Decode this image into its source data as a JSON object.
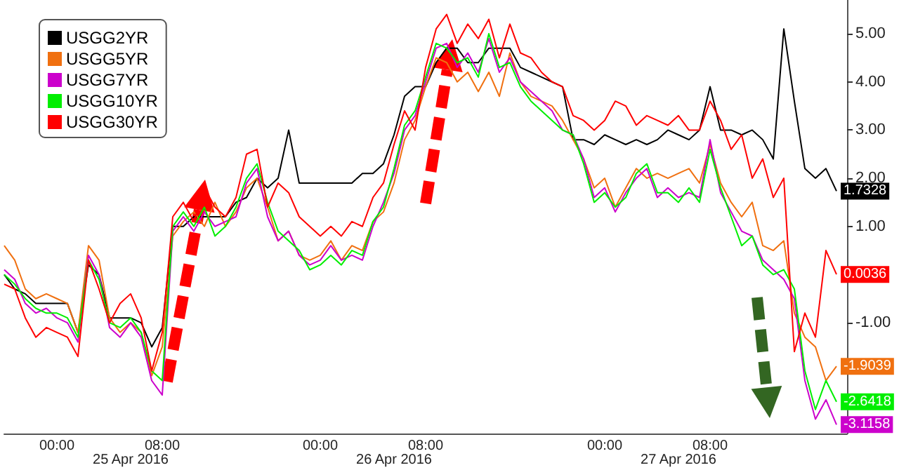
{
  "chart_data": {
    "type": "line",
    "legend": "top left",
    "categories": [
      null,
      null,
      null,
      null,
      null,
      "00:00",
      null,
      null,
      null,
      null,
      null,
      null,
      "25 Apr 2016",
      null,
      null,
      "08:00",
      null,
      null,
      null,
      null,
      null,
      null,
      null,
      null,
      null,
      null,
      null,
      null,
      null,
      null,
      "00:00",
      null,
      null,
      null,
      null,
      null,
      null,
      "26 Apr 2016",
      null,
      null,
      "08:00",
      null,
      null,
      null,
      null,
      null,
      null,
      null,
      null,
      null,
      null,
      null,
      null,
      null,
      null,
      null,
      null,
      "00:00",
      null,
      null,
      null,
      null,
      null,
      null,
      "27 Apr 2016",
      null,
      null,
      "08:00",
      null,
      null,
      null,
      null,
      null,
      null,
      null,
      null,
      null,
      null,
      null,
      null,
      null
    ],
    "ylim": [
      -3.3,
      5.7
    ],
    "yticks": [
      {
        "value": -3,
        "label": null
      },
      {
        "value": -2,
        "label": null
      },
      {
        "value": -1,
        "label": "-1.00"
      },
      {
        "value": 0,
        "label": null
      },
      {
        "value": 1,
        "label": "1.00"
      },
      {
        "value": 2,
        "label": "2.00"
      },
      {
        "value": 3,
        "label": "3.00"
      },
      {
        "value": 4,
        "label": "4.00"
      },
      {
        "value": 5,
        "label": "5.00"
      }
    ],
    "series": [
      {
        "name": "USGG2YR",
        "color": "#000000",
        "values": [
          0.0,
          -0.3,
          -0.4,
          -0.6,
          -0.6,
          -0.6,
          -0.6,
          -1.2,
          0.2,
          0.0,
          -0.9,
          -0.9,
          -0.9,
          -1.0,
          -1.5,
          -1.1,
          1.0,
          1.0,
          1.2,
          1.2,
          1.2,
          1.2,
          1.5,
          1.6,
          2.0,
          1.8,
          2.0,
          3.0,
          1.9,
          1.9,
          1.9,
          1.9,
          1.9,
          1.9,
          2.1,
          2.1,
          2.3,
          2.9,
          3.7,
          3.9,
          3.9,
          4.4,
          4.7,
          4.7,
          4.4,
          4.4,
          4.7,
          4.7,
          4.7,
          4.3,
          4.2,
          4.1,
          4.0,
          3.9,
          2.8,
          2.8,
          2.7,
          2.9,
          2.8,
          2.7,
          2.8,
          2.7,
          2.8,
          3.0,
          2.9,
          2.8,
          3.0,
          3.9,
          3.0,
          3.0,
          2.9,
          3.0,
          2.8,
          2.4,
          5.1,
          3.6,
          2.2,
          2.0,
          2.2,
          1.7328,
          null
        ],
        "value_labels": [
          null,
          null,
          null,
          null,
          null,
          null,
          null,
          null,
          null,
          null,
          null,
          null,
          null,
          null,
          null,
          null,
          null,
          null,
          null,
          null,
          null,
          null,
          null,
          null,
          null,
          null,
          null,
          null,
          null,
          null,
          null,
          null,
          null,
          null,
          null,
          null,
          null,
          null,
          null,
          null,
          null,
          null,
          null,
          null,
          null,
          null,
          null,
          null,
          null,
          null,
          null,
          null,
          null,
          null,
          null,
          null,
          null,
          null,
          null,
          null,
          null,
          null,
          null,
          null,
          null,
          null,
          null,
          null,
          null,
          null,
          null,
          null,
          null,
          null,
          null,
          null,
          null,
          null,
          null,
          "1.7328",
          null
        ]
      },
      {
        "name": "USGG5YR",
        "color": "#f07010",
        "values": [
          0.6,
          0.3,
          -0.3,
          -0.5,
          -0.4,
          -0.5,
          -0.6,
          -1.2,
          0.6,
          0.3,
          -0.9,
          -1.2,
          -1.0,
          -1.2,
          -2.1,
          -1.5,
          0.8,
          1.1,
          1.3,
          1.0,
          1.5,
          1.0,
          1.3,
          1.8,
          2.0,
          1.4,
          0.7,
          0.9,
          0.4,
          0.3,
          0.4,
          0.7,
          0.3,
          0.6,
          0.5,
          1.1,
          1.3,
          1.9,
          2.8,
          3.2,
          3.9,
          4.5,
          4.4,
          4.0,
          4.2,
          3.8,
          4.2,
          3.7,
          4.6,
          4.0,
          3.7,
          3.6,
          3.5,
          3.2,
          2.8,
          2.4,
          1.8,
          2.0,
          1.4,
          1.8,
          2.2,
          2.0,
          2.1,
          2.0,
          2.1,
          2.2,
          1.9,
          2.7,
          1.9,
          1.5,
          1.2,
          1.5,
          0.6,
          0.5,
          0.7,
          -0.8,
          -1.3,
          -1.5,
          -2.2,
          -1.9039,
          null
        ],
        "value_labels": [
          null,
          null,
          null,
          null,
          null,
          null,
          null,
          null,
          null,
          null,
          null,
          null,
          null,
          null,
          null,
          null,
          null,
          null,
          null,
          null,
          null,
          null,
          null,
          null,
          null,
          null,
          null,
          null,
          null,
          null,
          null,
          null,
          null,
          null,
          null,
          null,
          null,
          null,
          null,
          null,
          null,
          null,
          null,
          null,
          null,
          null,
          null,
          null,
          null,
          null,
          null,
          null,
          null,
          null,
          null,
          null,
          null,
          null,
          null,
          null,
          null,
          null,
          null,
          null,
          null,
          null,
          null,
          null,
          null,
          null,
          null,
          null,
          null,
          null,
          null,
          null,
          null,
          null,
          null,
          "-1.9039",
          null
        ]
      },
      {
        "name": "USGG7YR",
        "color": "#cc00cc",
        "values": [
          0.1,
          -0.1,
          -0.6,
          -0.8,
          -0.7,
          -0.9,
          -1.0,
          -1.4,
          0.4,
          0.0,
          -1.1,
          -1.3,
          -1.0,
          -1.3,
          -2.2,
          -2.5,
          0.9,
          1.2,
          0.9,
          1.3,
          1.0,
          1.1,
          1.2,
          1.9,
          2.2,
          1.2,
          0.7,
          0.9,
          0.4,
          0.2,
          0.3,
          0.6,
          0.3,
          0.4,
          0.3,
          1.0,
          1.5,
          2.1,
          3.0,
          3.3,
          4.0,
          4.7,
          4.8,
          4.3,
          4.6,
          4.2,
          4.9,
          4.2,
          4.5,
          4.0,
          3.8,
          3.6,
          3.4,
          3.0,
          2.9,
          2.4,
          1.6,
          1.8,
          1.3,
          1.7,
          2.0,
          2.2,
          1.6,
          1.8,
          1.6,
          1.7,
          1.6,
          2.8,
          1.7,
          1.3,
          0.9,
          0.8,
          0.3,
          0.1,
          -0.1,
          -0.5,
          -2.2,
          -3.0,
          -2.6,
          -3.1158,
          null
        ],
        "value_labels": [
          null,
          null,
          null,
          null,
          null,
          null,
          null,
          null,
          null,
          null,
          null,
          null,
          null,
          null,
          null,
          null,
          null,
          null,
          null,
          null,
          null,
          null,
          null,
          null,
          null,
          null,
          null,
          null,
          null,
          null,
          null,
          null,
          null,
          null,
          null,
          null,
          null,
          null,
          null,
          null,
          null,
          null,
          null,
          null,
          null,
          null,
          null,
          null,
          null,
          null,
          null,
          null,
          null,
          null,
          null,
          null,
          null,
          null,
          null,
          null,
          null,
          null,
          null,
          null,
          null,
          null,
          null,
          null,
          null,
          null,
          null,
          null,
          null,
          null,
          null,
          null,
          null,
          null,
          null,
          "-3.1158",
          null
        ]
      },
      {
        "name": "USGG10YR",
        "color": "#00ee00",
        "values": [
          0.0,
          -0.2,
          -0.5,
          -0.7,
          -0.8,
          -0.8,
          -0.9,
          -1.3,
          0.3,
          -0.1,
          -1.0,
          -1.1,
          -0.9,
          -1.2,
          -2.0,
          -2.2,
          1.0,
          1.3,
          1.0,
          1.4,
          0.8,
          1.0,
          1.4,
          2.0,
          2.3,
          1.5,
          0.9,
          0.7,
          0.5,
          0.1,
          0.2,
          0.4,
          0.2,
          0.5,
          0.4,
          1.1,
          1.4,
          2.2,
          3.1,
          3.4,
          4.1,
          4.8,
          4.7,
          4.4,
          4.5,
          4.1,
          5.0,
          4.3,
          4.4,
          3.9,
          3.6,
          3.4,
          3.2,
          3.0,
          2.9,
          2.3,
          1.5,
          1.7,
          1.4,
          1.6,
          2.1,
          2.3,
          1.7,
          1.7,
          1.5,
          1.8,
          1.5,
          2.6,
          1.8,
          1.2,
          0.6,
          0.8,
          0.2,
          0.0,
          0.1,
          -0.3,
          -2.0,
          -2.8,
          -2.2,
          -2.6418,
          null
        ],
        "value_labels": [
          null,
          null,
          null,
          null,
          null,
          null,
          null,
          null,
          null,
          null,
          null,
          null,
          null,
          null,
          null,
          null,
          null,
          null,
          null,
          null,
          null,
          null,
          null,
          null,
          null,
          null,
          null,
          null,
          null,
          null,
          null,
          null,
          null,
          null,
          null,
          null,
          null,
          null,
          null,
          null,
          null,
          null,
          null,
          null,
          null,
          null,
          null,
          null,
          null,
          null,
          null,
          null,
          null,
          null,
          null,
          null,
          null,
          null,
          null,
          null,
          null,
          null,
          null,
          null,
          null,
          null,
          null,
          null,
          null,
          null,
          null,
          null,
          null,
          null,
          null,
          null,
          null,
          null,
          null,
          "-2.6418",
          null
        ]
      },
      {
        "name": "USGG30YR",
        "color": "#ff0000",
        "values": [
          -0.2,
          -0.3,
          -0.9,
          -1.3,
          -1.1,
          -1.2,
          -1.3,
          -1.7,
          0.3,
          -0.3,
          -1.0,
          -0.6,
          -0.4,
          -0.9,
          -2.0,
          -1.2,
          1.2,
          1.5,
          1.1,
          1.8,
          1.4,
          1.2,
          1.6,
          2.5,
          2.6,
          1.4,
          1.9,
          1.7,
          1.2,
          1.0,
          0.8,
          1.0,
          0.8,
          1.1,
          1.0,
          1.6,
          1.9,
          2.7,
          3.4,
          3.0,
          4.3,
          5.1,
          5.4,
          4.8,
          5.2,
          4.9,
          5.3,
          4.5,
          5.2,
          4.6,
          4.5,
          4.2,
          4.0,
          3.9,
          3.3,
          3.2,
          3.0,
          3.2,
          3.6,
          3.5,
          3.1,
          3.3,
          3.2,
          3.1,
          3.3,
          3.0,
          3.0,
          3.6,
          3.2,
          2.6,
          2.9,
          2.0,
          2.4,
          1.6,
          2.0,
          -1.6,
          -0.8,
          -1.3,
          0.5,
          0.0036,
          null
        ],
        "value_labels": [
          null,
          null,
          null,
          null,
          null,
          null,
          null,
          null,
          null,
          null,
          null,
          null,
          null,
          null,
          null,
          null,
          null,
          null,
          null,
          null,
          null,
          null,
          null,
          null,
          null,
          null,
          null,
          null,
          null,
          null,
          null,
          null,
          null,
          null,
          null,
          null,
          null,
          null,
          null,
          null,
          null,
          null,
          null,
          null,
          null,
          null,
          null,
          null,
          null,
          null,
          null,
          null,
          null,
          null,
          null,
          null,
          null,
          null,
          null,
          null,
          null,
          null,
          null,
          null,
          null,
          null,
          null,
          null,
          null,
          null,
          null,
          null,
          null,
          null,
          null,
          null,
          null,
          null,
          null,
          "0.0036",
          null
        ]
      }
    ]
  }
}
